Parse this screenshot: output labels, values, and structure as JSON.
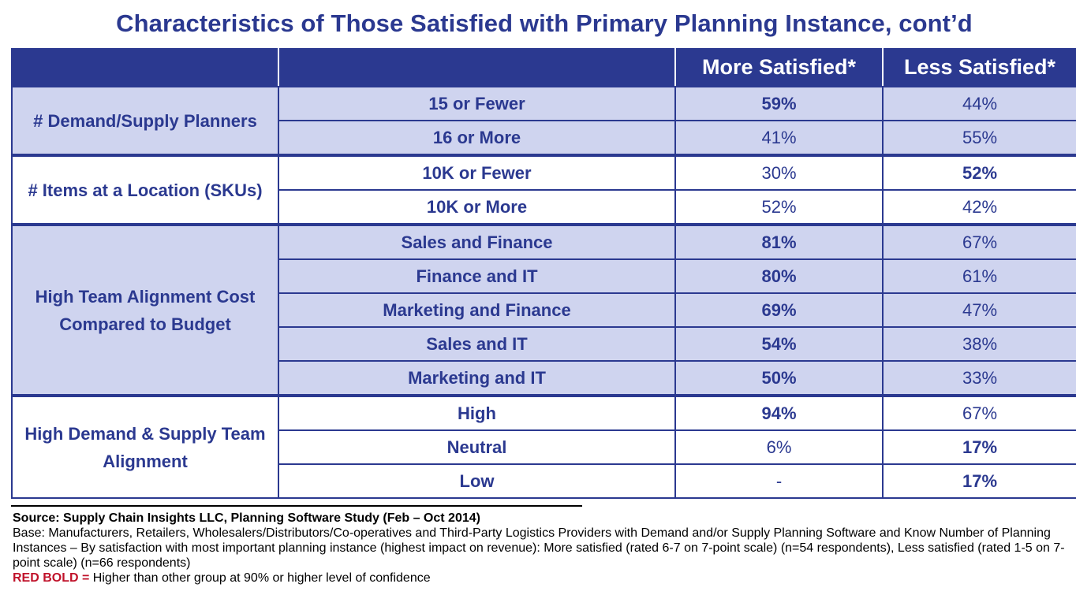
{
  "title": "Characteristics of Those Satisfied with Primary Planning Instance, cont’d",
  "table": {
    "headers": [
      "",
      "",
      "More Satisfied*",
      "Less Satisfied*"
    ],
    "groups": [
      {
        "label": "# Demand/Supply Planners",
        "rows": [
          {
            "label": "15 or Fewer",
            "more": "59%",
            "less": "44%"
          },
          {
            "label": "16 or More",
            "more": "41%",
            "less": "55%"
          }
        ]
      },
      {
        "label": "# Items at a Location (SKUs)",
        "rows": [
          {
            "label": "10K or Fewer",
            "more": "30%",
            "less": "52%"
          },
          {
            "label": "10K or More",
            "more": "52%",
            "less": "42%"
          }
        ]
      },
      {
        "label": "High Team Alignment Cost Compared to Budget",
        "rows": [
          {
            "label": "Sales and Finance",
            "more": "81%",
            "less": "67%"
          },
          {
            "label": "Finance and IT",
            "more": "80%",
            "less": "61%"
          },
          {
            "label": "Marketing and Finance",
            "more": "69%",
            "less": "47%"
          },
          {
            "label": "Sales and IT",
            "more": "54%",
            "less": "38%"
          },
          {
            "label": "Marketing and IT",
            "more": "50%",
            "less": "33%"
          }
        ]
      },
      {
        "label": "High Demand & Supply Team Alignment",
        "rows": [
          {
            "label": "High",
            "more": "94%",
            "less": "67%"
          },
          {
            "label": "Neutral",
            "more": "6%",
            "less": "17%"
          },
          {
            "label": "Low",
            "more": "-",
            "less": "17%"
          }
        ]
      }
    ]
  },
  "footer": {
    "source": "Source:  Supply Chain Insights LLC, Planning Software Study (Feb – Oct 2014)",
    "base": "Base: Manufacturers, Retailers, Wholesalers/Distributors/Co-operatives and Third-Party Logistics Providers with Demand and/or Supply Planning Software and Know Number of Planning Instances  – By satisfaction with most important planning instance (highest impact on revenue):  More satisfied (rated 6-7 on 7-point scale) (n=54 respondents), Less satisfied (rated 1-5 on 7-point scale) (n=66 respondents)",
    "legend_key": "RED BOLD =",
    "legend_text": " Higher than other group at 90% or higher level of confidence"
  },
  "colors": {
    "navy": "#2b3990",
    "shade": "#cfd4ef",
    "highlight_red": "#c0122a"
  }
}
